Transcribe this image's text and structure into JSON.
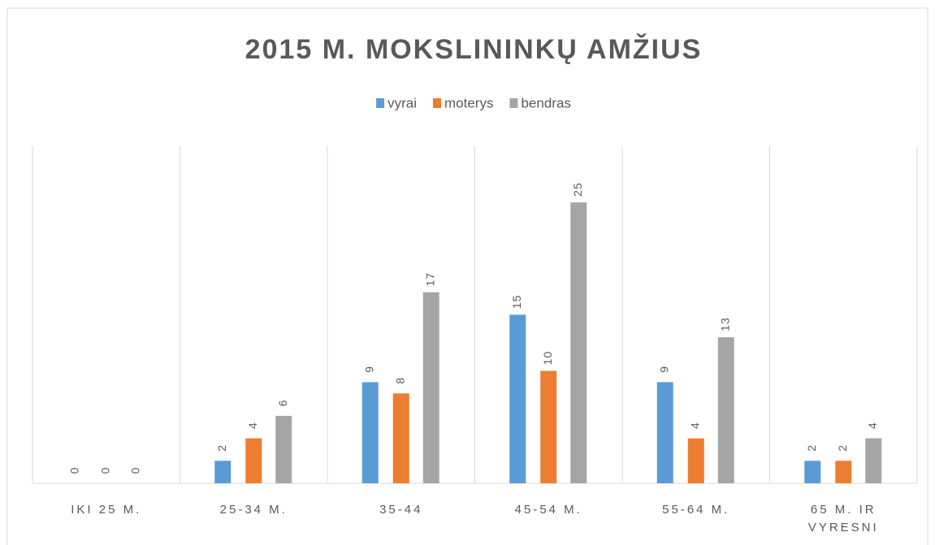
{
  "chart_data": {
    "type": "bar",
    "title": "2015 M. MOKSLININKŲ AMŽIUS",
    "categories": [
      "IKI 25 M.",
      "25-34 M.",
      "35-44",
      "45-54 M.",
      "55-64 M.",
      "65 M. IR VYRESNI"
    ],
    "series": [
      {
        "name": "vyrai",
        "color": "#5b9bd5",
        "values": [
          0,
          2,
          9,
          15,
          9,
          2
        ]
      },
      {
        "name": "moterys",
        "color": "#ed7d31",
        "values": [
          0,
          4,
          8,
          10,
          4,
          2
        ]
      },
      {
        "name": "bendras",
        "color": "#a5a5a5",
        "values": [
          0,
          6,
          17,
          25,
          13,
          4
        ]
      }
    ],
    "ylim": [
      0,
      30
    ],
    "legend": "top",
    "grid": false
  }
}
